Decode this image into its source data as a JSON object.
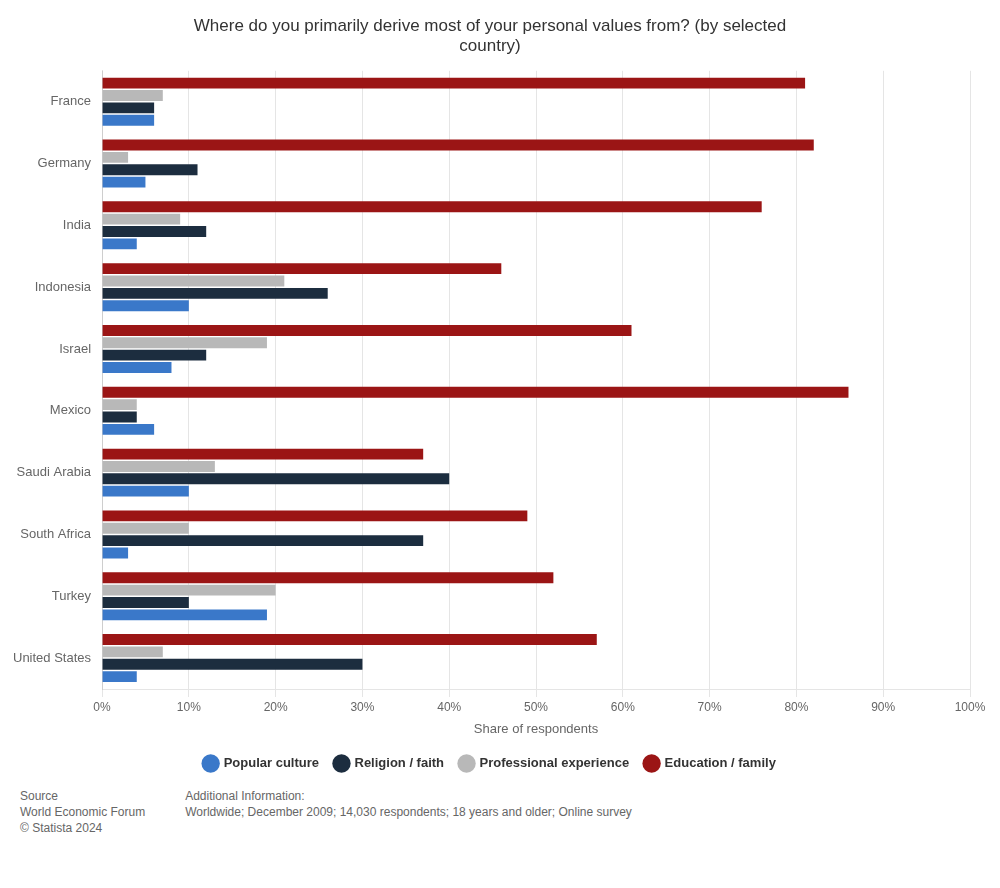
{
  "chart_data": {
    "type": "bar",
    "orientation": "horizontal",
    "title": "Where do you primarily derive most of your personal values from? (by selected\ncountry)",
    "categories": [
      "France",
      "Germany",
      "India",
      "Indonesia",
      "Israel",
      "Mexico",
      "Saudi Arabia",
      "South Africa",
      "Turkey",
      "United States"
    ],
    "series": [
      {
        "name": "Education / family",
        "color": "#9b1515",
        "values": [
          81,
          82,
          76,
          46,
          61,
          86,
          37,
          49,
          52,
          57
        ]
      },
      {
        "name": "Professional experience",
        "color": "#b8b8b8",
        "values": [
          7,
          3,
          9,
          21,
          19,
          4,
          13,
          10,
          20,
          7
        ]
      },
      {
        "name": "Religion / faith",
        "color": "#1c2d3f",
        "values": [
          6,
          11,
          12,
          26,
          12,
          4,
          40,
          37,
          10,
          30
        ]
      },
      {
        "name": "Popular culture",
        "color": "#3a78c9",
        "values": [
          6,
          5,
          4,
          10,
          8,
          6,
          10,
          3,
          19,
          4
        ]
      }
    ],
    "xlabel": "Share of respondents",
    "xlim": [
      0,
      100
    ],
    "xticks": [
      {
        "value": 0,
        "label": "0%"
      },
      {
        "value": 10,
        "label": "10%"
      },
      {
        "value": 20,
        "label": "20%"
      },
      {
        "value": 30,
        "label": "30%"
      },
      {
        "value": 40,
        "label": "40%"
      },
      {
        "value": 50,
        "label": "50%"
      },
      {
        "value": 60,
        "label": "60%"
      },
      {
        "value": 70,
        "label": "70%"
      },
      {
        "value": 80,
        "label": "80%"
      },
      {
        "value": 90,
        "label": "90%"
      },
      {
        "value": 100,
        "label": "100%"
      }
    ],
    "grid": true,
    "legend": "bottom",
    "annotations": [
      "Source\nWorld Economic Forum\n© Statista 2024",
      "Additional Information:\nWorldwide; December 2009; 14,030 respondents; 18 years and older; Online survey"
    ]
  }
}
